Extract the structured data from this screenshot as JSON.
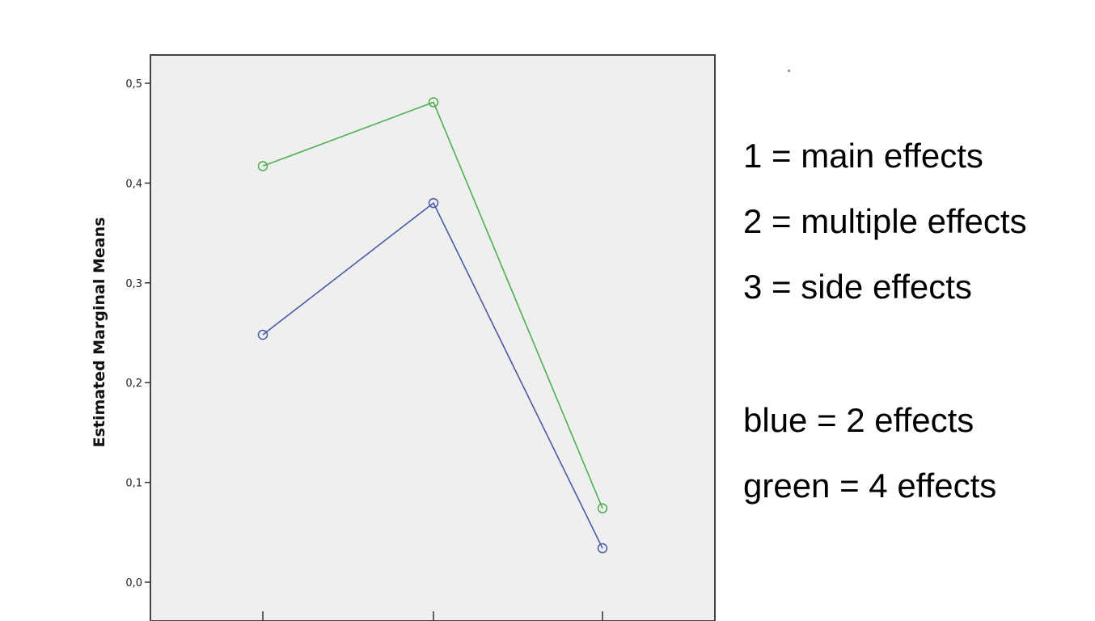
{
  "chart_data": {
    "type": "line",
    "x": [
      "1",
      "2",
      "3"
    ],
    "ylabel": "Estimated Marginal Means",
    "ylim": [
      0,
      0.5
    ],
    "yticks": [
      "0,0",
      "0,1",
      "0,2",
      "0,3",
      "0,4",
      "0,5"
    ],
    "series": [
      {
        "color": "#4a5aa8",
        "values": [
          0.248,
          0.38,
          0.034
        ]
      },
      {
        "color": "#4caf50",
        "values": [
          0.417,
          0.481,
          0.074
        ]
      }
    ],
    "background": "#efefef",
    "grid": false
  },
  "annotations": {
    "lines": [
      "1 = main effects",
      "2 = multiple effects",
      "3 = side effects",
      "blue = 2 effects",
      "green = 4 effects"
    ]
  }
}
